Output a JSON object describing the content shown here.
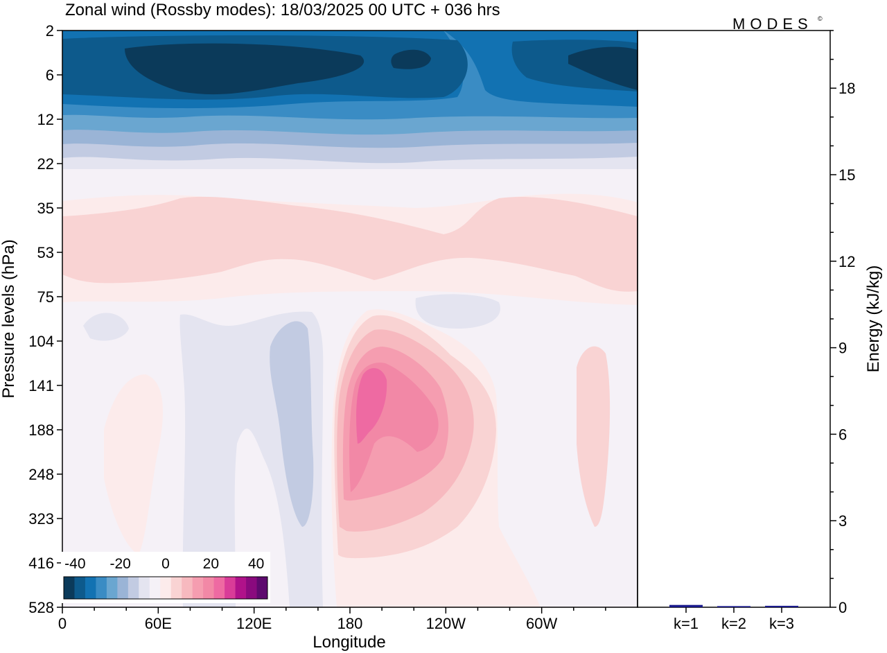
{
  "chart_data": [
    {
      "type": "heatmap",
      "title": "Zonal wind (Rossby modes):  18/03/2025  00 UTC  + 036 hrs",
      "xlabel": "Longitude",
      "ylabel": "Pressure levels (hPa)",
      "x_ticks": [
        "0",
        "60E",
        "120E",
        "180",
        "120W",
        "60W"
      ],
      "x_tick_degrees": [
        0,
        60,
        120,
        180,
        240,
        300
      ],
      "xlim": [
        0,
        360
      ],
      "y_levels": [
        "2",
        "6",
        "12",
        "22",
        "35",
        "53",
        "75",
        "104",
        "141",
        "188",
        "248",
        "323",
        "416",
        "528"
      ],
      "colorbar": {
        "ticks": [
          "-40",
          "-20",
          "0",
          "20",
          "40"
        ],
        "range": [
          -45,
          45
        ],
        "colors": [
          "#0b3a5a",
          "#0d5a8c",
          "#1272b2",
          "#3a8cc4",
          "#6aa6d0",
          "#9ab4d6",
          "#c2cbe2",
          "#e4e4f0",
          "#f5f1f7",
          "#fcebeb",
          "#f9d3d3",
          "#f7b9bf",
          "#f59db0",
          "#f288a6",
          "#ee6aa2",
          "#d93c98",
          "#b0128a",
          "#8a0a7e",
          "#5e0a6e"
        ]
      },
      "field_summary": [
        {
          "level_range": [
            "2",
            "12"
          ],
          "longitude_range": [
            0,
            360
          ],
          "value": -35
        },
        {
          "level_range": [
            "35",
            "75"
          ],
          "longitude_range": [
            0,
            360
          ],
          "value": 10
        },
        {
          "level_range": [
            "104",
            "323"
          ],
          "longitude_range": [
            175,
            260
          ],
          "value": 30
        },
        {
          "level_range": [
            "104",
            "416"
          ],
          "longitude_range": [
            70,
            160
          ],
          "value": -5
        }
      ]
    },
    {
      "type": "bar",
      "ylabel": "Energy (kJ/kg)",
      "categories": [
        "k=1",
        "k=2",
        "k=3"
      ],
      "values": [
        0.08,
        0.04,
        0.05
      ],
      "ylim": [
        0,
        20
      ],
      "y_ticks": [
        "0",
        "3",
        "6",
        "9",
        "12",
        "15",
        "18"
      ],
      "bar_color": "#1a1a8c"
    }
  ],
  "brand": "MODES",
  "brand_mark": "©"
}
